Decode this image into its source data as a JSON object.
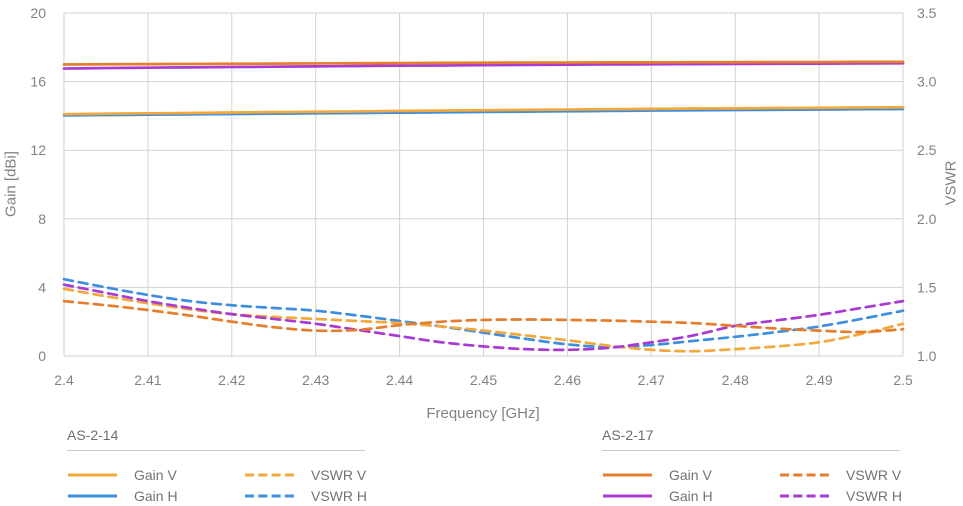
{
  "chart_data": {
    "type": "line",
    "xlabel": "Frequency [GHz]",
    "ylabel_left": "Gain [dBi]",
    "ylabel_right": "VSWR",
    "x_range": [
      2.4,
      2.5
    ],
    "y_left_range": [
      0,
      20
    ],
    "y_right_range": [
      1.0,
      3.5
    ],
    "grid": true,
    "x_ticks": [
      "2.4",
      "2.41",
      "2.42",
      "2.43",
      "2.44",
      "2.45",
      "2.46",
      "2.47",
      "2.48",
      "2.49",
      "2.5"
    ],
    "y_left_ticks": [
      "0",
      "4",
      "8",
      "12",
      "16",
      "20"
    ],
    "y_right_ticks": [
      "1.0",
      "1.5",
      "2.0",
      "2.5",
      "3.0",
      "3.5"
    ],
    "x": [
      2.4,
      2.405,
      2.41,
      2.415,
      2.42,
      2.425,
      2.43,
      2.435,
      2.44,
      2.445,
      2.45,
      2.455,
      2.46,
      2.465,
      2.47,
      2.475,
      2.48,
      2.485,
      2.49,
      2.495,
      2.5
    ],
    "series": [
      {
        "name": "AS-2-14 VSWR H",
        "axis": "right",
        "style": "dashed",
        "color": "#3f8ede",
        "values": [
          1.56,
          1.5,
          1.445,
          1.4,
          1.37,
          1.35,
          1.33,
          1.295,
          1.255,
          1.215,
          1.17,
          1.125,
          1.085,
          1.065,
          1.08,
          1.11,
          1.14,
          1.175,
          1.215,
          1.27,
          1.33
        ]
      },
      {
        "name": "AS-2-14 VSWR V",
        "axis": "right",
        "style": "dashed",
        "color": "#f3a83b",
        "values": [
          1.49,
          1.435,
          1.385,
          1.34,
          1.305,
          1.285,
          1.27,
          1.255,
          1.24,
          1.215,
          1.185,
          1.15,
          1.115,
          1.075,
          1.045,
          1.035,
          1.05,
          1.07,
          1.1,
          1.16,
          1.235
        ]
      },
      {
        "name": "AS-2-17 VSWR H",
        "axis": "right",
        "style": "dashed",
        "color": "#a93bd2",
        "values": [
          1.52,
          1.46,
          1.4,
          1.35,
          1.305,
          1.27,
          1.235,
          1.19,
          1.145,
          1.1,
          1.07,
          1.05,
          1.045,
          1.06,
          1.1,
          1.15,
          1.22,
          1.26,
          1.3,
          1.35,
          1.4
        ]
      },
      {
        "name": "AS-2-17 VSWR V",
        "axis": "right",
        "style": "dashed",
        "color": "#e67d2d",
        "values": [
          1.4,
          1.37,
          1.335,
          1.295,
          1.25,
          1.21,
          1.185,
          1.19,
          1.225,
          1.25,
          1.263,
          1.266,
          1.263,
          1.258,
          1.25,
          1.24,
          1.22,
          1.2,
          1.185,
          1.175,
          1.195
        ]
      },
      {
        "name": "AS-2-14 Gain H",
        "axis": "left",
        "style": "solid",
        "color": "#3f8ede",
        "values": [
          14.03,
          14.05,
          14.07,
          14.09,
          14.11,
          14.13,
          14.15,
          14.17,
          14.19,
          14.21,
          14.23,
          14.25,
          14.27,
          14.29,
          14.31,
          14.33,
          14.34,
          14.36,
          14.37,
          14.39,
          14.4
        ]
      },
      {
        "name": "AS-2-14 Gain V",
        "axis": "left",
        "style": "solid",
        "color": "#f3a83b",
        "values": [
          14.1,
          14.13,
          14.15,
          14.17,
          14.2,
          14.22,
          14.24,
          14.26,
          14.29,
          14.31,
          14.33,
          14.35,
          14.37,
          14.39,
          14.41,
          14.43,
          14.44,
          14.46,
          14.47,
          14.49,
          14.5
        ]
      },
      {
        "name": "AS-2-17 Gain H",
        "axis": "left",
        "style": "solid",
        "color": "#a93bd2",
        "values": [
          16.76,
          16.79,
          16.81,
          16.83,
          16.85,
          16.87,
          16.89,
          16.91,
          16.93,
          16.94,
          16.96,
          16.97,
          16.99,
          17.0,
          17.01,
          17.02,
          17.03,
          17.04,
          17.05,
          17.06,
          17.07
        ]
      },
      {
        "name": "AS-2-17 Gain V",
        "axis": "left",
        "style": "solid",
        "color": "#e67d2d",
        "values": [
          17.0,
          17.01,
          17.02,
          17.03,
          17.04,
          17.05,
          17.06,
          17.07,
          17.08,
          17.09,
          17.1,
          17.11,
          17.11,
          17.12,
          17.12,
          17.13,
          17.13,
          17.14,
          17.14,
          17.15,
          17.15
        ]
      }
    ],
    "legend": {
      "groups": [
        {
          "title": "AS-2-14",
          "items": [
            {
              "label": "Gain V",
              "style": "solid",
              "color": "#f3a83b"
            },
            {
              "label": "Gain H",
              "style": "solid",
              "color": "#3f8ede"
            },
            {
              "label": "VSWR V",
              "style": "dashed",
              "color": "#f3a83b"
            },
            {
              "label": "VSWR H",
              "style": "dashed",
              "color": "#3f8ede"
            }
          ]
        },
        {
          "title": "AS-2-17",
          "items": [
            {
              "label": "Gain V",
              "style": "solid",
              "color": "#e67d2d"
            },
            {
              "label": "Gain H",
              "style": "solid",
              "color": "#a93bd2"
            },
            {
              "label": "VSWR V",
              "style": "dashed",
              "color": "#e67d2d"
            },
            {
              "label": "VSWR H",
              "style": "dashed",
              "color": "#a93bd2"
            }
          ]
        }
      ]
    }
  }
}
